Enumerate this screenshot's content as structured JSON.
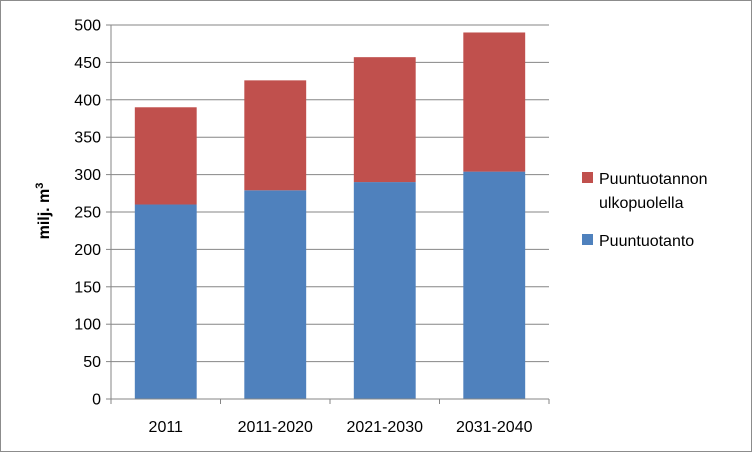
{
  "chart_data": {
    "type": "bar",
    "stacked": true,
    "categories": [
      "2011",
      "2011-2020",
      "2021-2030",
      "2031-2040"
    ],
    "series": [
      {
        "name": "Puuntuotanto",
        "values": [
          260,
          279,
          290,
          304
        ],
        "color": "#4f81bd"
      },
      {
        "name": "Puuntuotannon ulkopuolella",
        "values": [
          130,
          147,
          167,
          186
        ],
        "color": "#c0504d"
      }
    ],
    "legend_lines": [
      [
        "Puuntuotannon",
        "ulkopuolella"
      ],
      [
        "Puuntuotanto"
      ]
    ],
    "ylabel_main": "milj. m",
    "ylabel_sup": "3",
    "yticks": [
      0,
      50,
      100,
      150,
      200,
      250,
      300,
      350,
      400,
      450,
      500
    ],
    "ylim": [
      0,
      500
    ],
    "grid": "horizontal",
    "legend_position": "right"
  }
}
